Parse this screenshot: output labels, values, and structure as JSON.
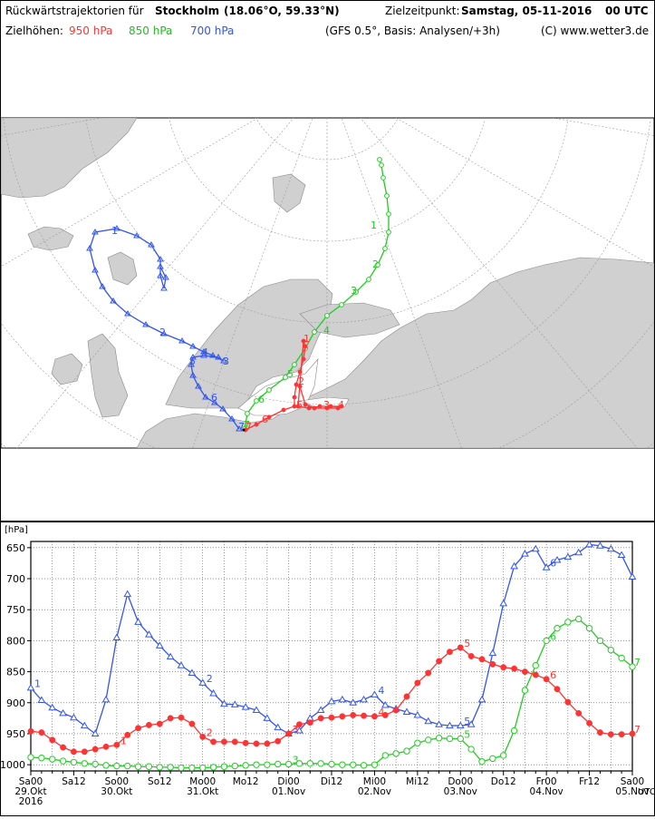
{
  "header": {
    "title_prefix": "Rückwärtstrajektorien für",
    "title_city": "Stockholm",
    "title_coords": "(18.06°O, 59.33°N)",
    "target_label": "Zielzeitpunkt:",
    "target_value": "Samstag, 05-11-2016",
    "target_time": "00 UTC",
    "levels_label": "Zielhöhen:",
    "level_950": "950 hPa",
    "level_850": "850 hPa",
    "level_700": "700 hPa",
    "model_info": "(GFS 0.5°, Basis: Analysen/+3h)",
    "copyright": "(C) www.wetter3.de"
  },
  "colors": {
    "950": "#ff3333",
    "850": "#22cc22",
    "700": "#3355ee",
    "land": "#d0d0d0",
    "graticule": "#9a9a9a"
  },
  "map": {
    "track_700_labels": [
      "1",
      "2",
      "3",
      "4",
      "5",
      "6",
      "7"
    ],
    "track_850_labels": [
      "1",
      "2",
      "3",
      "4",
      "5",
      "6",
      "7"
    ],
    "track_950_labels": [
      "1",
      "2",
      "3",
      "4",
      "5",
      "6",
      "7"
    ]
  },
  "chart_data": {
    "type": "line",
    "ylabel": "[hPa]",
    "ylim": [
      1010,
      640
    ],
    "yticks": [
      650,
      700,
      750,
      800,
      850,
      900,
      950,
      1000
    ],
    "xlim": [
      0,
      168
    ],
    "grid": true,
    "x_tick_labels": [
      {
        "t": 0,
        "top": "Sa00",
        "mid": "29.Okt",
        "bot": "2016"
      },
      {
        "t": 12,
        "top": "Sa12"
      },
      {
        "t": 24,
        "top": "So00",
        "mid": "30.Okt"
      },
      {
        "t": 36,
        "top": "So12"
      },
      {
        "t": 48,
        "top": "Mo00",
        "mid": "31.Okt"
      },
      {
        "t": 60,
        "top": "Mo12"
      },
      {
        "t": 72,
        "top": "Di00",
        "mid": "01.Nov"
      },
      {
        "t": 84,
        "top": "Di12"
      },
      {
        "t": 96,
        "top": "Mi00",
        "mid": "02.Nov"
      },
      {
        "t": 108,
        "top": "Mi12"
      },
      {
        "t": 120,
        "top": "Do00",
        "mid": "03.Nov"
      },
      {
        "t": 132,
        "top": "Do12"
      },
      {
        "t": 144,
        "top": "Fr00",
        "mid": "04.Nov"
      },
      {
        "t": 156,
        "top": "Fr12"
      },
      {
        "t": 168,
        "top": "Sa00",
        "mid": "05.Nov"
      }
    ],
    "x_unit": "UTC",
    "series": [
      {
        "name": "700 hPa",
        "level": "700",
        "marker": "triangle",
        "x": [
          0,
          3,
          6,
          9,
          12,
          15,
          18,
          21,
          24,
          27,
          30,
          33,
          36,
          39,
          42,
          45,
          48,
          51,
          54,
          57,
          60,
          63,
          66,
          69,
          72,
          75,
          78,
          81,
          84,
          87,
          90,
          93,
          96,
          99,
          102,
          105,
          108,
          111,
          114,
          117,
          120,
          123,
          126,
          129,
          132,
          135,
          138,
          141,
          144,
          147,
          150,
          153,
          156,
          159,
          162,
          165,
          168
        ],
        "y": [
          876,
          896,
          908,
          917,
          924,
          937,
          950,
          895,
          795,
          725,
          770,
          790,
          808,
          826,
          840,
          852,
          868,
          885,
          902,
          903,
          907,
          912,
          925,
          940,
          950,
          945,
          925,
          912,
          898,
          895,
          900,
          895,
          887,
          904,
          910,
          915,
          920,
          930,
          935,
          937,
          937,
          935,
          895,
          820,
          740,
          680,
          660,
          652,
          682,
          670,
          665,
          658,
          645,
          647,
          652,
          662,
          697
        ],
        "point_labels": [
          {
            "t": 0,
            "text": "1"
          },
          {
            "t": 48,
            "text": "2"
          },
          {
            "t": 72,
            "text": "3"
          },
          {
            "t": 96,
            "text": "4"
          },
          {
            "t": 120,
            "text": "5"
          },
          {
            "t": 144,
            "text": "6"
          }
        ]
      },
      {
        "name": "850 hPa",
        "level": "850",
        "marker": "circle",
        "x": [
          0,
          3,
          6,
          9,
          12,
          15,
          18,
          21,
          24,
          27,
          30,
          33,
          36,
          39,
          42,
          45,
          48,
          51,
          54,
          57,
          60,
          63,
          66,
          69,
          72,
          75,
          78,
          81,
          84,
          87,
          90,
          93,
          96,
          99,
          102,
          105,
          108,
          111,
          114,
          117,
          120,
          123,
          126,
          129,
          132,
          135,
          138,
          141,
          144,
          147,
          150,
          153,
          156,
          159,
          162,
          165,
          168
        ],
        "y": [
          988,
          989,
          991,
          994,
          996,
          998,
          999,
          1001,
          1002,
          1002,
          1003,
          1003,
          1004,
          1004,
          1005,
          1005,
          1005,
          1004,
          1003,
          1002,
          1001,
          1000,
          1000,
          999,
          999,
          998,
          998,
          998,
          999,
          1000,
          1000,
          1001,
          1000,
          985,
          982,
          978,
          965,
          960,
          957,
          958,
          958,
          975,
          995,
          990,
          985,
          945,
          880,
          840,
          800,
          780,
          770,
          765,
          780,
          800,
          815,
          828,
          842
        ],
        "point_labels": [
          {
            "t": 72,
            "text": "3"
          },
          {
            "t": 120,
            "text": "5"
          },
          {
            "t": 144,
            "text": "6"
          },
          {
            "t": 168,
            "text": "7"
          }
        ]
      },
      {
        "name": "950 hPa",
        "level": "950",
        "marker": "filled-circle",
        "x": [
          0,
          3,
          6,
          9,
          12,
          15,
          18,
          21,
          24,
          27,
          30,
          33,
          36,
          39,
          42,
          45,
          48,
          51,
          54,
          57,
          60,
          63,
          66,
          69,
          72,
          75,
          78,
          81,
          84,
          87,
          90,
          93,
          96,
          99,
          102,
          105,
          108,
          111,
          114,
          117,
          120,
          123,
          126,
          129,
          132,
          135,
          138,
          141,
          144,
          147,
          150,
          153,
          156,
          159,
          162,
          165,
          168
        ],
        "y": [
          946,
          948,
          960,
          972,
          979,
          979,
          975,
          971,
          968,
          952,
          941,
          936,
          934,
          925,
          924,
          934,
          955,
          963,
          963,
          963,
          965,
          966,
          966,
          962,
          950,
          935,
          932,
          925,
          924,
          922,
          920,
          921,
          922,
          920,
          912,
          890,
          868,
          852,
          833,
          818,
          811,
          825,
          830,
          838,
          843,
          845,
          850,
          855,
          862,
          878,
          899,
          917,
          933,
          948,
          951,
          951,
          950
        ],
        "point_labels": [
          {
            "t": 24,
            "text": "1"
          },
          {
            "t": 48,
            "text": "2"
          },
          {
            "t": 72,
            "text": "3"
          },
          {
            "t": 96,
            "text": "4"
          },
          {
            "t": 120,
            "text": "5"
          },
          {
            "t": 144,
            "text": "6"
          },
          {
            "t": 168,
            "text": "7"
          }
        ]
      }
    ]
  }
}
